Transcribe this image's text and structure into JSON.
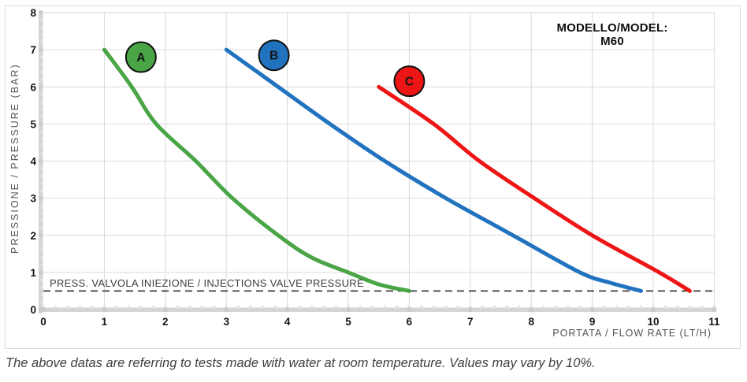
{
  "chart_data": {
    "type": "line",
    "title": "MODELLO/MODEL: M60",
    "xlabel": "PORTATA / FLOW RATE (LT/H)",
    "ylabel": "PRESSIONE / PRESSURE (BAR)",
    "xlim": [
      0,
      11
    ],
    "ylim": [
      0,
      8
    ],
    "x_ticks": [
      0,
      1,
      2,
      3,
      4,
      5,
      6,
      7,
      8,
      9,
      10,
      11
    ],
    "y_ticks": [
      0,
      1,
      2,
      3,
      4,
      5,
      6,
      7,
      8
    ],
    "grid": true,
    "grid_color": "#d9d9d9",
    "axis_band_color": "#d5d5d5",
    "legend_position": "on-curve-badges",
    "reference_line": {
      "y": 0.5,
      "style": "dashed",
      "color": "#2b2b2b",
      "label": "PRESS. VALVOLA INIEZIONE / INJECTIONS VALVE PRESSURE"
    },
    "series": [
      {
        "name": "A",
        "color": "#4aa546",
        "badge": {
          "x": 1.6,
          "y": 6.8
        },
        "points": [
          [
            1,
            7
          ],
          [
            1.45,
            6
          ],
          [
            1.85,
            5
          ],
          [
            2.5,
            4
          ],
          [
            3.1,
            3
          ],
          [
            3.85,
            2
          ],
          [
            4.4,
            1.4
          ],
          [
            5,
            1
          ],
          [
            5.5,
            0.68
          ],
          [
            6,
            0.5
          ]
        ]
      },
      {
        "name": "B",
        "color": "#2173bf",
        "badge": {
          "x": 3.78,
          "y": 6.85
        },
        "points": [
          [
            3,
            7
          ],
          [
            3.85,
            6
          ],
          [
            4.7,
            5
          ],
          [
            5.6,
            4
          ],
          [
            6.6,
            3
          ],
          [
            7.7,
            2
          ],
          [
            8.8,
            1
          ],
          [
            9.3,
            0.72
          ],
          [
            9.8,
            0.5
          ]
        ]
      },
      {
        "name": "C",
        "color": "#ee1515",
        "badge": {
          "x": 6.0,
          "y": 6.15
        },
        "points": [
          [
            5.5,
            6
          ],
          [
            6.4,
            5
          ],
          [
            7.15,
            4
          ],
          [
            8.05,
            3
          ],
          [
            9,
            2
          ],
          [
            10.1,
            1
          ],
          [
            10.6,
            0.5
          ]
        ]
      }
    ]
  },
  "caption": "The above datas are referring to tests made with water at room temperature. Values may vary by 10%."
}
